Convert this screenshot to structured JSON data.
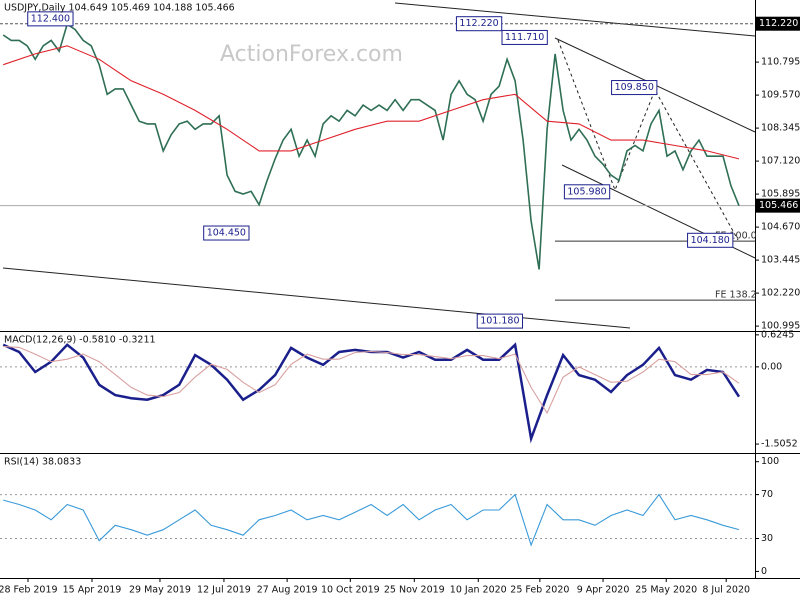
{
  "chart_data": [
    {
      "type": "line",
      "title": "USDJPY,Daily  104.649 105.469 104.188 105.466",
      "watermark": "ActionForex.com",
      "xlim": [
        -0.4,
        94
      ],
      "ylim": [
        100.85,
        113.1
      ],
      "x": [
        0,
        1,
        2,
        3,
        4,
        5,
        6,
        7,
        8,
        9,
        10,
        11,
        12,
        13,
        14,
        15,
        16,
        17,
        18,
        19,
        20,
        21,
        22,
        23,
        24,
        25,
        26,
        27,
        28,
        29,
        30,
        31,
        32,
        33,
        34,
        35,
        36,
        37,
        38,
        39,
        40,
        41,
        42,
        43,
        44,
        45,
        46,
        47,
        48,
        49,
        50,
        51,
        52,
        53,
        54,
        55,
        56,
        57,
        58,
        59,
        60,
        61,
        62,
        63,
        64,
        65,
        66,
        67,
        68,
        69,
        70,
        71,
        72,
        73,
        74,
        75,
        76,
        77,
        78,
        79,
        80,
        81,
        82,
        83,
        84,
        85,
        86,
        87,
        88,
        89,
        90,
        91,
        92
      ],
      "series": [
        {
          "name": "USDJPY",
          "color": "#2f6f55",
          "values": [
            111.8,
            111.6,
            111.6,
            111.4,
            110.9,
            111.4,
            111.6,
            111.2,
            112.2,
            112.0,
            111.6,
            111.4,
            110.7,
            109.6,
            109.8,
            109.8,
            109.2,
            108.6,
            108.5,
            108.5,
            107.5,
            108.1,
            108.5,
            108.6,
            108.3,
            108.5,
            108.5,
            108.8,
            106.6,
            106.0,
            105.9,
            106.0,
            105.5,
            106.4,
            107.2,
            107.9,
            108.3,
            107.3,
            107.9,
            107.3,
            108.5,
            108.8,
            108.6,
            109.0,
            108.8,
            109.2,
            109.0,
            109.2,
            109.0,
            109.4,
            109.0,
            109.4,
            109.4,
            109.2,
            109.0,
            107.9,
            109.6,
            110.1,
            109.6,
            109.4,
            108.6,
            109.6,
            109.9,
            110.9,
            110.1,
            107.9,
            104.9,
            103.1,
            108.3,
            111.1,
            109.0,
            107.9,
            108.3,
            107.9,
            107.3,
            107.0,
            106.6,
            106.4,
            107.5,
            107.7,
            107.5,
            108.5,
            109.0,
            107.3,
            107.5,
            106.8,
            107.5,
            107.9,
            107.3,
            107.3,
            107.3,
            106.2,
            105.466
          ]
        },
        {
          "name": "MA",
          "color": "#e0202a",
          "x": [
            0,
            4,
            8,
            12,
            16,
            20,
            24,
            28,
            32,
            36,
            40,
            44,
            48,
            52,
            56,
            60,
            64,
            68,
            72,
            76,
            80,
            84,
            88,
            92
          ],
          "values": [
            110.7,
            111.1,
            111.4,
            110.9,
            110.1,
            109.6,
            109.0,
            108.3,
            107.5,
            107.5,
            107.9,
            108.3,
            108.6,
            108.6,
            109.0,
            109.4,
            109.6,
            108.6,
            108.5,
            107.9,
            107.9,
            107.7,
            107.5,
            107.2
          ]
        }
      ],
      "yticks": [
        110.795,
        {
          "value": 109.57,
          "label": "109.570"
        },
        108.345,
        {
          "value": 107.12,
          "label": "107.120"
        },
        105.895,
        {
          "value": 104.67,
          "label": "104.670"
        },
        103.445,
        {
          "value": 102.22,
          "label": "102.220"
        },
        100.995
      ],
      "levels": [
        {
          "value": 112.22,
          "label": "112.220"
        },
        105.466
      ],
      "fe_levels": [
        {
          "value": 104.15,
          "label": "FE 100.0"
        },
        {
          "value": 101.96,
          "label": "FE 138.2"
        }
      ],
      "annotations": [
        {
          "label": "112.400",
          "value": 112.4,
          "x": 5.9
        },
        {
          "label": "112.220",
          "value": 112.22,
          "x": 59.5
        },
        {
          "label": "111.710",
          "value": 111.71,
          "x": 65.2
        },
        {
          "label": "109.850",
          "value": 109.85,
          "x": 78.9
        },
        {
          "label": "105.980",
          "value": 105.98,
          "x": 73
        },
        {
          "label": "104.450",
          "value": 104.45,
          "x": 27.9
        },
        {
          "label": "104.180",
          "value": 104.18,
          "x": 88.4
        },
        {
          "label": "101.180",
          "value": 101.18,
          "x": 62.1
        }
      ]
    },
    {
      "type": "line",
      "title": "MACD(12,26,9) -0.5810 -0.3211",
      "xlim": [
        -0.4,
        94
      ],
      "ylim": [
        -1.66,
        0.68
      ],
      "x": [
        0,
        2,
        4,
        6,
        8,
        10,
        12,
        14,
        16,
        18,
        20,
        22,
        24,
        26,
        28,
        30,
        32,
        34,
        36,
        38,
        40,
        42,
        44,
        46,
        48,
        50,
        52,
        54,
        56,
        58,
        60,
        62,
        64,
        66,
        68,
        70,
        72,
        74,
        76,
        78,
        80,
        82,
        84,
        86,
        88,
        90,
        92
      ],
      "series": [
        {
          "name": "MACD",
          "color": "#1a1f8c",
          "values": [
            0.43,
            0.29,
            -0.1,
            0.1,
            0.43,
            0.18,
            -0.35,
            -0.55,
            -0.61,
            -0.64,
            -0.55,
            -0.35,
            0.23,
            0.04,
            -0.25,
            -0.64,
            -0.45,
            -0.16,
            0.37,
            0.18,
            0.04,
            0.29,
            0.33,
            0.29,
            0.29,
            0.18,
            0.29,
            0.14,
            0.14,
            0.33,
            0.14,
            0.14,
            0.43,
            -1.4,
            -0.55,
            0.23,
            -0.16,
            -0.25,
            -0.49,
            -0.16,
            0.04,
            0.37,
            -0.16,
            -0.25,
            -0.06,
            -0.1,
            -0.581
          ]
        },
        {
          "name": "Signal",
          "color": "#d9a0a0",
          "values": [
            0.4,
            0.38,
            0.25,
            0.1,
            0.15,
            0.25,
            0.1,
            -0.15,
            -0.4,
            -0.55,
            -0.58,
            -0.5,
            -0.2,
            0.05,
            -0.05,
            -0.3,
            -0.5,
            -0.35,
            0.05,
            0.25,
            0.15,
            0.15,
            0.28,
            0.3,
            0.28,
            0.24,
            0.24,
            0.2,
            0.16,
            0.22,
            0.22,
            0.16,
            0.25,
            -0.4,
            -0.9,
            -0.2,
            0.0,
            -0.15,
            -0.3,
            -0.28,
            -0.1,
            0.15,
            0.1,
            -0.15,
            -0.15,
            -0.1,
            -0.3211
          ]
        }
      ],
      "yticks": [
        0.6245,
        {
          "value": 0,
          "label": "0.00"
        },
        -1.5052
      ],
      "dashed_levels": [
        0
      ]
    },
    {
      "type": "line",
      "title": "RSI(14) 38.0833",
      "xlim": [
        -0.4,
        94
      ],
      "ylim": [
        -6,
        107
      ],
      "x": [
        0,
        2,
        4,
        6,
        8,
        10,
        12,
        14,
        16,
        18,
        20,
        22,
        24,
        26,
        28,
        30,
        32,
        34,
        36,
        38,
        40,
        42,
        44,
        46,
        48,
        50,
        52,
        54,
        56,
        58,
        60,
        62,
        64,
        66,
        68,
        70,
        72,
        74,
        76,
        78,
        80,
        82,
        84,
        86,
        88,
        90,
        92
      ],
      "series": [
        {
          "name": "RSI",
          "color": "#3a9ad9",
          "values": [
            65,
            61,
            56,
            47,
            61,
            56,
            28,
            42,
            38,
            33,
            38,
            47,
            56,
            42,
            38,
            33,
            47,
            51,
            56,
            47,
            51,
            47,
            54,
            61,
            51,
            61,
            47,
            56,
            61,
            47,
            56,
            56,
            70,
            24,
            61,
            47,
            47,
            42,
            51,
            56,
            51,
            70,
            47,
            51,
            47,
            42,
            38.0833
          ]
        }
      ],
      "yticks": [
        100,
        70,
        30,
        0
      ],
      "dashed_levels": [
        70,
        30
      ],
      "xticks": [
        {
          "value": 3.1,
          "label": "28 Feb 2019"
        },
        {
          "value": 11.1,
          "label": "15 Apr 2019"
        },
        {
          "value": 19.6,
          "label": "29 May 2019"
        },
        {
          "value": 27.6,
          "label": "12 Jul 2019"
        },
        {
          "value": 35.5,
          "label": "27 Aug 2019"
        },
        {
          "value": 43.4,
          "label": "10 Oct 2019"
        },
        {
          "value": 51.4,
          "label": "25 Nov 2019"
        },
        {
          "value": 59.4,
          "label": "10 Jan 2020"
        },
        {
          "value": 67.1,
          "label": "25 Feb 2020"
        },
        {
          "value": 75,
          "label": "9 Apr 2020"
        },
        {
          "value": 82.9,
          "label": "25 May 2020"
        },
        {
          "value": 90.4,
          "label": "8 Jul 2020"
        }
      ]
    }
  ]
}
